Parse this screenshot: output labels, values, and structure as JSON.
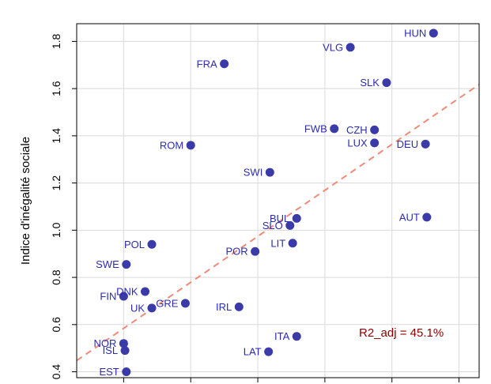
{
  "chart_data": {
    "type": "scatter",
    "title": "",
    "xlabel": "",
    "ylabel": "Indice d'inégalité sociale",
    "ylim": [
      0.375,
      1.875
    ],
    "xlim": [
      0.25,
      3.25
    ],
    "y_ticks": [
      0.4,
      0.6,
      0.8,
      1.0,
      1.2,
      1.4,
      1.6,
      1.8
    ],
    "y_tick_labels": [
      "0.4",
      "0.6",
      "0.8",
      "1.0",
      "1.2",
      "1.4",
      "1.6",
      "1.8"
    ],
    "x_ticks": [
      0.6,
      1.1,
      1.6,
      2.1,
      2.6,
      3.1
    ],
    "grid": true,
    "point_color": "#3a3aa8",
    "trend_color": "#f08a78",
    "annotation": "R2_adj = 45.1%",
    "annotation_color": "#8b0000",
    "trendline": {
      "slope": 0.39,
      "intercept": 0.35
    },
    "points": [
      {
        "label": "HUN",
        "x": 2.91,
        "y": 1.835
      },
      {
        "label": "VLG",
        "x": 2.29,
        "y": 1.775
      },
      {
        "label": "FRA",
        "x": 1.35,
        "y": 1.705
      },
      {
        "label": "SLK",
        "x": 2.56,
        "y": 1.625
      },
      {
        "label": "FWB",
        "x": 2.17,
        "y": 1.43
      },
      {
        "label": "CZH",
        "x": 2.47,
        "y": 1.425
      },
      {
        "label": "LUX",
        "x": 2.47,
        "y": 1.37
      },
      {
        "label": "DEU",
        "x": 2.85,
        "y": 1.365
      },
      {
        "label": "ROM",
        "x": 1.1,
        "y": 1.36
      },
      {
        "label": "SWI",
        "x": 1.69,
        "y": 1.245
      },
      {
        "label": "BUL",
        "x": 1.89,
        "y": 1.05
      },
      {
        "label": "AUT",
        "x": 2.86,
        "y": 1.055
      },
      {
        "label": "SLO",
        "x": 1.84,
        "y": 1.02
      },
      {
        "label": "LIT",
        "x": 1.86,
        "y": 0.945
      },
      {
        "label": "POL",
        "x": 0.81,
        "y": 0.94
      },
      {
        "label": "POR",
        "x": 1.58,
        "y": 0.91
      },
      {
        "label": "SWE",
        "x": 0.62,
        "y": 0.855
      },
      {
        "label": "DNK",
        "x": 0.76,
        "y": 0.74
      },
      {
        "label": "FIN",
        "x": 0.6,
        "y": 0.72
      },
      {
        "label": "GRE",
        "x": 1.06,
        "y": 0.69
      },
      {
        "label": "IRL",
        "x": 1.46,
        "y": 0.675
      },
      {
        "label": "UK",
        "x": 0.81,
        "y": 0.67
      },
      {
        "label": "ITA",
        "x": 1.89,
        "y": 0.55
      },
      {
        "label": "NOR",
        "x": 0.6,
        "y": 0.52
      },
      {
        "label": "LAT",
        "x": 1.68,
        "y": 0.485
      },
      {
        "label": "ISL",
        "x": 0.61,
        "y": 0.49
      },
      {
        "label": "EST",
        "x": 0.62,
        "y": 0.4
      }
    ]
  }
}
